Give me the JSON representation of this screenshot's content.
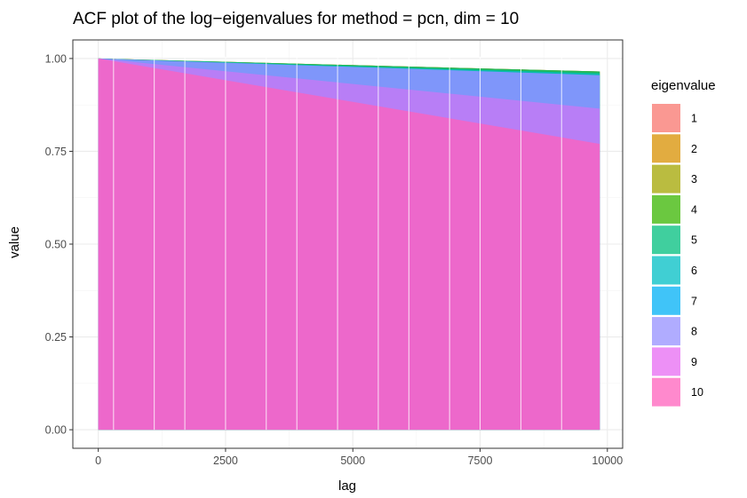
{
  "chart_data": {
    "type": "area",
    "title": "ACF plot of the log−eigenvalues for method = pcn, dim = 10",
    "xlabel": "lag",
    "ylabel": "value",
    "xlim": [
      -500,
      10300
    ],
    "ylim": [
      -0.05,
      1.05
    ],
    "x_ticks": [
      0,
      2500,
      5000,
      7500,
      10000
    ],
    "x_tick_labels": [
      "0",
      "2500",
      "5000",
      "7500",
      "10000"
    ],
    "y_ticks": [
      0,
      0.25,
      0.5,
      0.75,
      1.0
    ],
    "y_tick_labels": [
      "0.00",
      "0.25",
      "0.50",
      "0.75",
      "1.00"
    ],
    "grid": true,
    "legend_position": "right",
    "legend_title": "eigenvalue",
    "x": [
      0,
      9850
    ],
    "series": [
      {
        "name": "1",
        "color": "#F8766D",
        "values": [
          1.0,
          0.965
        ]
      },
      {
        "name": "2",
        "color": "#D89000",
        "values": [
          1.0,
          0.965
        ]
      },
      {
        "name": "3",
        "color": "#A3A500",
        "values": [
          1.0,
          0.965
        ]
      },
      {
        "name": "4",
        "color": "#39B600",
        "values": [
          1.0,
          0.965
        ]
      },
      {
        "name": "5",
        "color": "#00BF7D",
        "values": [
          1.0,
          0.965
        ]
      },
      {
        "name": "6",
        "color": "#00BFC4",
        "values": [
          1.0,
          0.96
        ]
      },
      {
        "name": "7",
        "color": "#00B0F6",
        "values": [
          1.0,
          0.955
        ]
      },
      {
        "name": "8",
        "color": "#9590FF",
        "values": [
          1.0,
          0.955
        ]
      },
      {
        "name": "9",
        "color": "#E76BF3",
        "values": [
          1.0,
          0.865
        ]
      },
      {
        "name": "10",
        "color": "#FF62BC",
        "values": [
          1.0,
          0.77
        ]
      }
    ],
    "vertical_separators_x": [
      300,
      1100,
      1700,
      2500,
      3300,
      3900,
      4700,
      5500,
      6100,
      6900,
      7500,
      8300,
      9100
    ]
  }
}
